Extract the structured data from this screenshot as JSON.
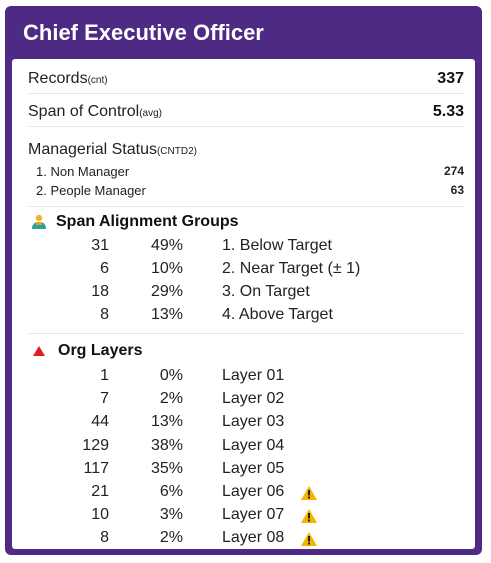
{
  "card": {
    "title": "Chief Executive Officer"
  },
  "records": {
    "label": "Records",
    "sub": "(cnt)",
    "value": "337"
  },
  "span_of_control": {
    "label": "Span of Control",
    "sub": "(avg)",
    "value": "5.33"
  },
  "managerial_status": {
    "label": "Managerial Status",
    "sub": "(CNTD2)",
    "items": [
      {
        "label": "1. Non Manager",
        "value": "274"
      },
      {
        "label": "2. People Manager",
        "value": "63"
      }
    ]
  },
  "span_alignment": {
    "title": "Span Alignment Groups",
    "icon": "people-group-icon",
    "rows": [
      {
        "count": "31",
        "pct": "49%",
        "label": "1. Below Target"
      },
      {
        "count": "6",
        "pct": "10%",
        "label": "2. Near Target (± 1)"
      },
      {
        "count": "18",
        "pct": "29%",
        "label": "3. On Target"
      },
      {
        "count": "8",
        "pct": "13%",
        "label": "4. Above Target"
      }
    ]
  },
  "org_layers": {
    "title": "Org Layers",
    "icon": "red-triangle-icon",
    "rows": [
      {
        "count": "1",
        "pct": "0%",
        "label": "Layer 01",
        "warning": false
      },
      {
        "count": "7",
        "pct": "2%",
        "label": "Layer 02",
        "warning": false
      },
      {
        "count": "44",
        "pct": "13%",
        "label": "Layer 03",
        "warning": false
      },
      {
        "count": "129",
        "pct": "38%",
        "label": "Layer 04",
        "warning": false
      },
      {
        "count": "117",
        "pct": "35%",
        "label": "Layer 05",
        "warning": false
      },
      {
        "count": "21",
        "pct": "6%",
        "label": "Layer 06",
        "warning": true
      },
      {
        "count": "10",
        "pct": "3%",
        "label": "Layer 07",
        "warning": true
      },
      {
        "count": "8",
        "pct": "2%",
        "label": "Layer 08",
        "warning": true
      }
    ]
  },
  "colors": {
    "header": "#4e2a84",
    "warning": "#f4b400",
    "triangle": "#e02020"
  }
}
